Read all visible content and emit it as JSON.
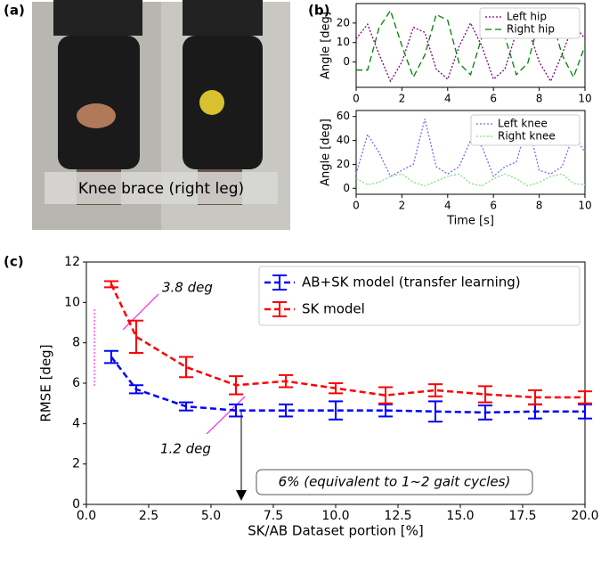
{
  "panel_labels": [
    "(a)",
    "(b)",
    "(c)"
  ],
  "photo": {
    "caption": "Knee brace (right leg)"
  },
  "chart_data": [
    {
      "type": "line",
      "ylabel": "Angle [deg]",
      "x": [
        0,
        0.5,
        1,
        1.5,
        2,
        2.5,
        3,
        3.5,
        4,
        4.5,
        5,
        5.5,
        6,
        6.5,
        7,
        7.5,
        8,
        8.5,
        9,
        9.5,
        10
      ],
      "xlim": [
        0,
        10
      ],
      "xticks": [
        0,
        2,
        4,
        6,
        8,
        10
      ],
      "ylim": [
        -13,
        30
      ],
      "yticks": [
        0,
        10,
        20
      ],
      "legend": "upper right",
      "series": [
        {
          "name": "Left hip",
          "color": "#800080",
          "linestyle": "dotted",
          "values": [
            11.9,
            19.4,
            4.0,
            -9.9,
            0.0,
            17.8,
            15.2,
            -3.7,
            -8.8,
            8.0,
            20.0,
            8.0,
            -8.8,
            -3.7,
            15.2,
            17.8,
            0.0,
            -9.9,
            4.0,
            19.4,
            11.9
          ]
        },
        {
          "name": "Right hip",
          "color": "#008000",
          "linestyle": "dashed",
          "values": [
            -4.1,
            -4.1,
            17.5,
            26.4,
            8.3,
            -7.8,
            3.6,
            24.4,
            21.4,
            -0.6,
            -6.5,
            13.1,
            27.0,
            13.1,
            -6.5,
            -0.6,
            21.4,
            24.4,
            3.6,
            -7.8,
            8.3
          ]
        }
      ]
    },
    {
      "type": "line",
      "ylabel": "Angle [deg]",
      "xlabel": "Time [s]",
      "x": [
        0,
        0.5,
        1,
        1.5,
        2,
        2.5,
        3,
        3.5,
        4,
        4.5,
        5,
        5.5,
        6,
        6.5,
        7,
        7.5,
        8,
        8.5,
        9,
        9.5,
        10
      ],
      "xlim": [
        0,
        10
      ],
      "xticks": [
        0,
        2,
        4,
        6,
        8,
        10
      ],
      "ylim": [
        -5,
        65
      ],
      "yticks": [
        0,
        20,
        40,
        60
      ],
      "legend": "upper right",
      "series": [
        {
          "name": "Left knee",
          "color": "#7b68ee",
          "linestyle": "dotted",
          "values": [
            12,
            45,
            30,
            10,
            15,
            20,
            58,
            18,
            12,
            18,
            40,
            35,
            10,
            18,
            22,
            55,
            15,
            12,
            18,
            45,
            30
          ]
        },
        {
          "name": "Right knee",
          "color": "#7ee07e",
          "linestyle": "dotted",
          "values": [
            8,
            3,
            5,
            10,
            12,
            5,
            2,
            6,
            10,
            12,
            4,
            2,
            8,
            12,
            8,
            2,
            5,
            10,
            12,
            4,
            3
          ]
        }
      ]
    },
    {
      "type": "errorbar",
      "xlabel": "SK/AB Dataset portion [%]",
      "ylabel": "RMSE [deg]",
      "x": [
        1,
        2,
        4,
        6,
        8,
        10,
        12,
        14,
        16,
        18,
        20
      ],
      "xlim": [
        0,
        20
      ],
      "xticks": [
        {
          "value": 0,
          "label": "0.0"
        },
        {
          "value": 2.5,
          "label": "2.5"
        },
        {
          "value": 5,
          "label": "5.0"
        },
        {
          "value": 7.5,
          "label": "7.5"
        },
        {
          "value": 10,
          "label": "10.0"
        },
        {
          "value": 12.5,
          "label": "12.5"
        },
        {
          "value": 15,
          "label": "15.0"
        },
        {
          "value": 17.5,
          "label": "17.5"
        },
        {
          "value": 20,
          "label": "20.0"
        }
      ],
      "ylim": [
        0,
        12
      ],
      "yticks": [
        0,
        2,
        4,
        6,
        8,
        10,
        12
      ],
      "legend": "upper right",
      "annotations": [
        "3.8 deg",
        "1.2 deg",
        "6% (equivalent to 1~2 gait cycles)"
      ],
      "series": [
        {
          "name": "AB+SK model (transfer learning)",
          "color": "#0000ff",
          "linestyle": "dashed",
          "values": [
            7.3,
            5.7,
            4.85,
            4.65,
            4.65,
            4.65,
            4.65,
            4.6,
            4.55,
            4.6,
            4.6
          ],
          "errors": [
            0.3,
            0.2,
            0.2,
            0.3,
            0.3,
            0.45,
            0.3,
            0.5,
            0.35,
            0.35,
            0.35
          ]
        },
        {
          "name": "SK model",
          "color": "#ff0000",
          "linestyle": "dashed",
          "values": [
            10.9,
            8.3,
            6.8,
            5.9,
            6.1,
            5.75,
            5.4,
            5.65,
            5.45,
            5.3,
            5.3
          ],
          "errors": [
            0.15,
            0.8,
            0.5,
            0.45,
            0.3,
            0.25,
            0.4,
            0.3,
            0.4,
            0.35,
            0.3
          ]
        }
      ]
    }
  ]
}
